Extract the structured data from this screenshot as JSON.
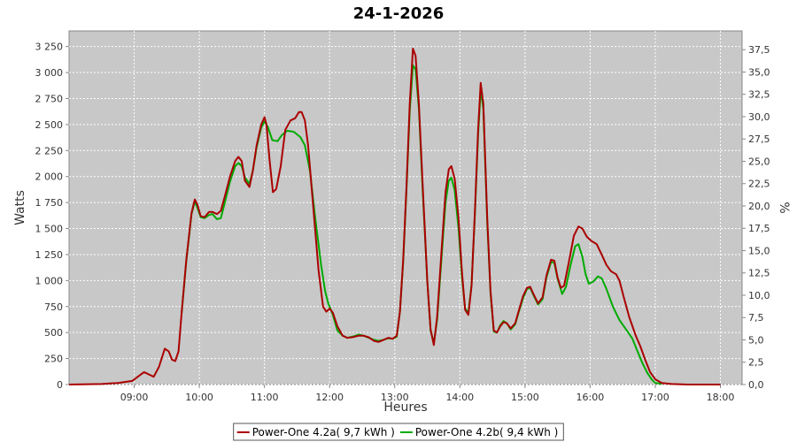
{
  "chart_data": {
    "type": "line",
    "title": "24-1-2026",
    "xlabel": "Heures",
    "ylabel": "Watts",
    "ylabel_right": "%",
    "x_unit": "hour",
    "xlim": [
      8.0,
      18.333
    ],
    "ylim": [
      0,
      3400
    ],
    "ylim_right": [
      0,
      39.6
    ],
    "x_ticks": [
      {
        "value": 9,
        "label": "09:00"
      },
      {
        "value": 10,
        "label": "10:00"
      },
      {
        "value": 11,
        "label": "11:00"
      },
      {
        "value": 12,
        "label": "12:00"
      },
      {
        "value": 13,
        "label": "13:00"
      },
      {
        "value": 14,
        "label": "14:00"
      },
      {
        "value": 15,
        "label": "15:00"
      },
      {
        "value": 16,
        "label": "16:00"
      },
      {
        "value": 17,
        "label": "17:00"
      },
      {
        "value": 18,
        "label": "18:00"
      }
    ],
    "y_ticks": [
      {
        "value": 0,
        "label": "0"
      },
      {
        "value": 250,
        "label": "250"
      },
      {
        "value": 500,
        "label": "500"
      },
      {
        "value": 750,
        "label": "750"
      },
      {
        "value": 1000,
        "label": "1 000"
      },
      {
        "value": 1250,
        "label": "1 250"
      },
      {
        "value": 1500,
        "label": "1 500"
      },
      {
        "value": 1750,
        "label": "1 750"
      },
      {
        "value": 2000,
        "label": "2 000"
      },
      {
        "value": 2250,
        "label": "2 250"
      },
      {
        "value": 2500,
        "label": "2 500"
      },
      {
        "value": 2750,
        "label": "2 750"
      },
      {
        "value": 3000,
        "label": "3 000"
      },
      {
        "value": 3250,
        "label": "3 250"
      }
    ],
    "y_ticks_right": [
      {
        "value": 0,
        "label": "0,0"
      },
      {
        "value": 2.5,
        "label": "2,5"
      },
      {
        "value": 5,
        "label": "5,0"
      },
      {
        "value": 7.5,
        "label": "7,5"
      },
      {
        "value": 10,
        "label": "10,0"
      },
      {
        "value": 12.5,
        "label": "12,5"
      },
      {
        "value": 15,
        "label": "15,0"
      },
      {
        "value": 17.5,
        "label": "17,5"
      },
      {
        "value": 20,
        "label": "20,0"
      },
      {
        "value": 22.5,
        "label": "22,5"
      },
      {
        "value": 25,
        "label": "25,0"
      },
      {
        "value": 27.5,
        "label": "27,5"
      },
      {
        "value": 30,
        "label": "30,0"
      },
      {
        "value": 32.5,
        "label": "32,5"
      },
      {
        "value": 35,
        "label": "35,0"
      },
      {
        "value": 37.5,
        "label": "37,5"
      }
    ],
    "grid": true,
    "legend_position": "bottom",
    "plot_background": "#c8c8c8",
    "series": [
      {
        "name": "Power-One 4.2a( 9,7 kWh )",
        "color": "#aa0000",
        "points": [
          [
            8.0,
            0
          ],
          [
            8.5,
            5
          ],
          [
            8.75,
            15
          ],
          [
            8.97,
            35
          ],
          [
            9.15,
            120
          ],
          [
            9.3,
            75
          ],
          [
            9.38,
            170
          ],
          [
            9.47,
            345
          ],
          [
            9.53,
            320
          ],
          [
            9.58,
            240
          ],
          [
            9.63,
            225
          ],
          [
            9.68,
            320
          ],
          [
            9.73,
            700
          ],
          [
            9.8,
            1200
          ],
          [
            9.88,
            1650
          ],
          [
            9.93,
            1780
          ],
          [
            9.97,
            1730
          ],
          [
            10.02,
            1620
          ],
          [
            10.08,
            1610
          ],
          [
            10.15,
            1660
          ],
          [
            10.2,
            1660
          ],
          [
            10.27,
            1640
          ],
          [
            10.33,
            1670
          ],
          [
            10.4,
            1830
          ],
          [
            10.47,
            2000
          ],
          [
            10.55,
            2150
          ],
          [
            10.6,
            2190
          ],
          [
            10.65,
            2150
          ],
          [
            10.7,
            1960
          ],
          [
            10.77,
            1900
          ],
          [
            10.82,
            2050
          ],
          [
            10.88,
            2300
          ],
          [
            10.95,
            2500
          ],
          [
            11.0,
            2570
          ],
          [
            11.03,
            2500
          ],
          [
            11.08,
            2150
          ],
          [
            11.13,
            1850
          ],
          [
            11.18,
            1880
          ],
          [
            11.25,
            2100
          ],
          [
            11.32,
            2450
          ],
          [
            11.4,
            2540
          ],
          [
            11.47,
            2560
          ],
          [
            11.53,
            2620
          ],
          [
            11.57,
            2620
          ],
          [
            11.62,
            2540
          ],
          [
            11.67,
            2300
          ],
          [
            11.75,
            1700
          ],
          [
            11.83,
            1100
          ],
          [
            11.9,
            750
          ],
          [
            11.95,
            700
          ],
          [
            12.0,
            730
          ],
          [
            12.05,
            690
          ],
          [
            12.12,
            560
          ],
          [
            12.2,
            470
          ],
          [
            12.27,
            450
          ],
          [
            12.35,
            455
          ],
          [
            12.45,
            470
          ],
          [
            12.52,
            470
          ],
          [
            12.6,
            455
          ],
          [
            12.68,
            420
          ],
          [
            12.75,
            410
          ],
          [
            12.83,
            430
          ],
          [
            12.9,
            450
          ],
          [
            12.97,
            440
          ],
          [
            13.03,
            470
          ],
          [
            13.08,
            700
          ],
          [
            13.13,
            1200
          ],
          [
            13.18,
            1900
          ],
          [
            13.23,
            2700
          ],
          [
            13.28,
            3230
          ],
          [
            13.32,
            3160
          ],
          [
            13.37,
            2700
          ],
          [
            13.43,
            1900
          ],
          [
            13.5,
            1000
          ],
          [
            13.55,
            530
          ],
          [
            13.6,
            380
          ],
          [
            13.65,
            650
          ],
          [
            13.72,
            1300
          ],
          [
            13.78,
            1850
          ],
          [
            13.83,
            2070
          ],
          [
            13.87,
            2100
          ],
          [
            13.92,
            1980
          ],
          [
            13.98,
            1600
          ],
          [
            14.03,
            1100
          ],
          [
            14.08,
            720
          ],
          [
            14.13,
            670
          ],
          [
            14.18,
            950
          ],
          [
            14.23,
            1650
          ],
          [
            14.28,
            2450
          ],
          [
            14.32,
            2900
          ],
          [
            14.36,
            2700
          ],
          [
            14.42,
            1600
          ],
          [
            14.47,
            900
          ],
          [
            14.52,
            520
          ],
          [
            14.57,
            500
          ],
          [
            14.62,
            560
          ],
          [
            14.67,
            600
          ],
          [
            14.72,
            590
          ],
          [
            14.78,
            540
          ],
          [
            14.85,
            590
          ],
          [
            14.9,
            700
          ],
          [
            14.97,
            850
          ],
          [
            15.03,
            930
          ],
          [
            15.08,
            940
          ],
          [
            15.13,
            870
          ],
          [
            15.2,
            780
          ],
          [
            15.27,
            840
          ],
          [
            15.33,
            1050
          ],
          [
            15.4,
            1200
          ],
          [
            15.45,
            1190
          ],
          [
            15.5,
            1030
          ],
          [
            15.55,
            930
          ],
          [
            15.6,
            950
          ],
          [
            15.68,
            1200
          ],
          [
            15.75,
            1430
          ],
          [
            15.82,
            1520
          ],
          [
            15.88,
            1500
          ],
          [
            15.95,
            1420
          ],
          [
            16.02,
            1380
          ],
          [
            16.1,
            1350
          ],
          [
            16.17,
            1260
          ],
          [
            16.25,
            1150
          ],
          [
            16.32,
            1090
          ],
          [
            16.4,
            1060
          ],
          [
            16.45,
            1000
          ],
          [
            16.52,
            830
          ],
          [
            16.6,
            650
          ],
          [
            16.7,
            470
          ],
          [
            16.77,
            370
          ],
          [
            16.85,
            230
          ],
          [
            16.92,
            120
          ],
          [
            17.0,
            50
          ],
          [
            17.1,
            15
          ],
          [
            17.25,
            5
          ],
          [
            17.5,
            0
          ],
          [
            18.0,
            0
          ]
        ]
      },
      {
        "name": "Power-One 4.2b( 9,4 kWh )",
        "color": "#00aa00",
        "points": [
          [
            9.73,
            690
          ],
          [
            9.8,
            1190
          ],
          [
            9.88,
            1640
          ],
          [
            9.93,
            1760
          ],
          [
            9.97,
            1700
          ],
          [
            10.02,
            1610
          ],
          [
            10.08,
            1600
          ],
          [
            10.15,
            1630
          ],
          [
            10.2,
            1640
          ],
          [
            10.27,
            1590
          ],
          [
            10.33,
            1600
          ],
          [
            10.4,
            1770
          ],
          [
            10.47,
            1950
          ],
          [
            10.55,
            2100
          ],
          [
            10.6,
            2130
          ],
          [
            10.65,
            2100
          ],
          [
            10.7,
            1990
          ],
          [
            10.77,
            1930
          ],
          [
            10.82,
            2050
          ],
          [
            10.88,
            2280
          ],
          [
            10.95,
            2470
          ],
          [
            11.0,
            2530
          ],
          [
            11.05,
            2480
          ],
          [
            11.12,
            2350
          ],
          [
            11.2,
            2340
          ],
          [
            11.27,
            2400
          ],
          [
            11.35,
            2440
          ],
          [
            11.45,
            2430
          ],
          [
            11.55,
            2380
          ],
          [
            11.62,
            2300
          ],
          [
            11.7,
            2050
          ],
          [
            11.78,
            1600
          ],
          [
            11.87,
            1150
          ],
          [
            11.93,
            900
          ],
          [
            11.98,
            780
          ],
          [
            12.05,
            670
          ],
          [
            12.12,
            520
          ],
          [
            12.2,
            470
          ],
          [
            12.27,
            450
          ],
          [
            12.35,
            460
          ],
          [
            12.45,
            480
          ],
          [
            12.52,
            470
          ],
          [
            12.6,
            450
          ],
          [
            12.68,
            430
          ],
          [
            12.75,
            420
          ],
          [
            12.83,
            430
          ],
          [
            12.9,
            445
          ],
          [
            12.97,
            440
          ],
          [
            13.03,
            460
          ],
          [
            13.08,
            700
          ],
          [
            13.13,
            1180
          ],
          [
            13.18,
            1870
          ],
          [
            13.23,
            2630
          ],
          [
            13.28,
            3070
          ],
          [
            13.32,
            3030
          ],
          [
            13.37,
            2650
          ],
          [
            13.43,
            1850
          ],
          [
            13.5,
            1000
          ],
          [
            13.55,
            520
          ],
          [
            13.6,
            400
          ],
          [
            13.65,
            620
          ],
          [
            13.72,
            1230
          ],
          [
            13.78,
            1750
          ],
          [
            13.83,
            1960
          ],
          [
            13.87,
            1990
          ],
          [
            13.92,
            1870
          ],
          [
            13.98,
            1500
          ],
          [
            14.03,
            1050
          ],
          [
            14.08,
            730
          ],
          [
            14.13,
            690
          ],
          [
            14.18,
            960
          ],
          [
            14.23,
            1620
          ],
          [
            14.28,
            2400
          ],
          [
            14.32,
            2840
          ],
          [
            14.36,
            2650
          ],
          [
            14.42,
            1560
          ],
          [
            14.47,
            880
          ],
          [
            14.52,
            510
          ],
          [
            14.57,
            500
          ],
          [
            14.62,
            570
          ],
          [
            14.67,
            610
          ],
          [
            14.72,
            590
          ],
          [
            14.78,
            530
          ],
          [
            14.85,
            580
          ],
          [
            14.9,
            690
          ],
          [
            14.97,
            830
          ],
          [
            15.03,
            920
          ],
          [
            15.08,
            930
          ],
          [
            15.13,
            860
          ],
          [
            15.2,
            770
          ],
          [
            15.27,
            820
          ],
          [
            15.33,
            1030
          ],
          [
            15.4,
            1180
          ],
          [
            15.45,
            1170
          ],
          [
            15.5,
            1020
          ],
          [
            15.57,
            870
          ],
          [
            15.63,
            940
          ],
          [
            15.7,
            1150
          ],
          [
            15.77,
            1330
          ],
          [
            15.82,
            1350
          ],
          [
            15.88,
            1230
          ],
          [
            15.93,
            1060
          ],
          [
            15.98,
            970
          ],
          [
            16.05,
            990
          ],
          [
            16.12,
            1040
          ],
          [
            16.18,
            1020
          ],
          [
            16.25,
            920
          ],
          [
            16.35,
            750
          ],
          [
            16.45,
            620
          ],
          [
            16.55,
            530
          ],
          [
            16.65,
            440
          ],
          [
            16.72,
            330
          ],
          [
            16.8,
            210
          ],
          [
            16.88,
            110
          ],
          [
            16.95,
            45
          ],
          [
            17.0,
            15
          ],
          [
            17.1,
            5
          ]
        ]
      }
    ]
  }
}
